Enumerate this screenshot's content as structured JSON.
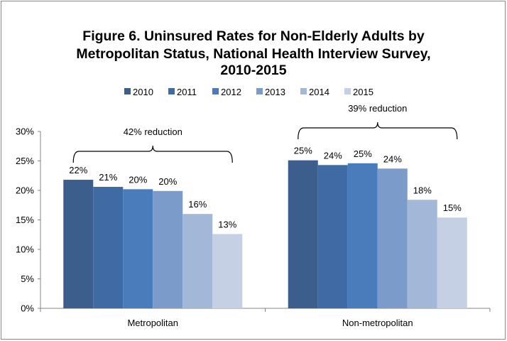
{
  "chart_data": {
    "type": "bar",
    "title": [
      "Figure 6. Uninsured Rates for Non-Elderly Adults by",
      "Metropolitan Status, National Health Interview Survey,",
      "2010-2015"
    ],
    "categories": [
      "Metropolitan",
      "Non-metropolitan"
    ],
    "series": [
      {
        "name": "2010",
        "color": "#3b5e8c",
        "values": [
          21.8,
          25.1
        ],
        "labels": [
          "22%",
          "25%"
        ]
      },
      {
        "name": "2011",
        "color": "#3f6aa4",
        "values": [
          20.6,
          24.3
        ],
        "labels": [
          "21%",
          "24%"
        ]
      },
      {
        "name": "2012",
        "color": "#4a7bbb",
        "values": [
          20.2,
          24.6
        ],
        "labels": [
          "20%",
          "25%"
        ]
      },
      {
        "name": "2013",
        "color": "#7b9bcb",
        "values": [
          19.9,
          23.7
        ],
        "labels": [
          "20%",
          "24%"
        ]
      },
      {
        "name": "2014",
        "color": "#a3b7d9",
        "values": [
          16.0,
          18.4
        ],
        "labels": [
          "16%",
          "18%"
        ]
      },
      {
        "name": "2015",
        "color": "#c5d0e5",
        "values": [
          12.6,
          15.4
        ],
        "labels": [
          "13%",
          "15%"
        ]
      }
    ],
    "yticks": [
      "0%",
      "5%",
      "10%",
      "15%",
      "20%",
      "25%",
      "30%"
    ],
    "ylim": [
      0,
      30
    ],
    "grid": false,
    "legend": "top",
    "annotations": [
      "42% reduction",
      "39% reduction"
    ]
  }
}
